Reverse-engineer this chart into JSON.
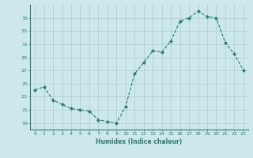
{
  "x": [
    0,
    1,
    2,
    3,
    4,
    5,
    6,
    7,
    8,
    9,
    10,
    11,
    12,
    13,
    14,
    15,
    16,
    17,
    18,
    19,
    20,
    21,
    22,
    23
  ],
  "y": [
    24.0,
    24.5,
    22.5,
    21.8,
    21.2,
    21.0,
    20.8,
    19.5,
    19.2,
    19.0,
    21.5,
    26.5,
    28.2,
    30.0,
    29.8,
    31.5,
    34.5,
    35.0,
    36.0,
    35.2,
    35.0,
    31.2,
    29.5,
    27.0
  ],
  "xlabel": "Humidex (Indice chaleur)",
  "bg_color": "#cde8ea",
  "line_color": "#2e7d6e",
  "marker_color": "#2e7d6e",
  "grid_color": "#a8cece",
  "tick_color": "#2e7d6e",
  "ylim": [
    18,
    37
  ],
  "yticks": [
    19,
    21,
    23,
    25,
    27,
    29,
    31,
    33,
    35
  ],
  "xticks": [
    0,
    1,
    2,
    3,
    4,
    5,
    6,
    7,
    8,
    9,
    10,
    11,
    12,
    13,
    14,
    15,
    16,
    17,
    18,
    19,
    20,
    21,
    22,
    23
  ]
}
